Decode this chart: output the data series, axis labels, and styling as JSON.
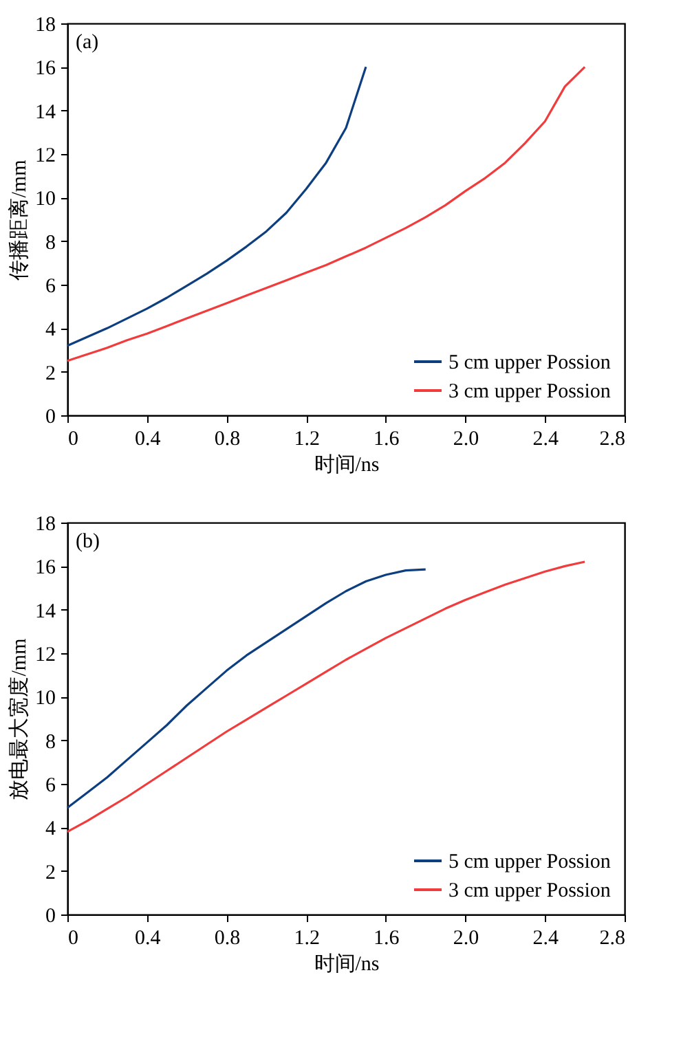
{
  "chart_data": [
    {
      "type": "line",
      "xlabel": "时间/ns",
      "ylabel": "传播距离/mm",
      "annotations": [
        "(a)"
      ],
      "legend": "bottom right",
      "grid": false,
      "line_style": "solid",
      "xlim": [
        0,
        2.8
      ],
      "xticks": [
        0,
        0.4,
        0.8,
        1.2,
        1.6,
        {
          "value": 2,
          "label": "2.0"
        },
        2.4,
        2.8
      ],
      "ylim": [
        0,
        18
      ],
      "yticks": [
        0,
        2,
        4,
        6,
        8,
        10,
        12,
        14,
        16,
        18
      ],
      "series": [
        {
          "name": "5 cm upper Possion",
          "color": "#0d3f80",
          "x": [
            0,
            0.1,
            0.2,
            0.3,
            0.4,
            0.5,
            0.6,
            0.7,
            0.8,
            0.9,
            1.0,
            1.1,
            1.2,
            1.3,
            1.4,
            1.5
          ],
          "values": [
            3.2,
            3.6,
            4.0,
            4.45,
            4.9,
            5.4,
            5.95,
            6.5,
            7.1,
            7.75,
            8.45,
            9.3,
            10.4,
            11.6,
            13.2,
            16.0
          ]
        },
        {
          "name": "3 cm upper Possion",
          "color": "#f03c3c",
          "x": [
            0,
            0.1,
            0.2,
            0.3,
            0.4,
            0.5,
            0.6,
            0.7,
            0.8,
            0.9,
            1.0,
            1.1,
            1.2,
            1.3,
            1.4,
            1.5,
            1.6,
            1.7,
            1.8,
            1.9,
            2.0,
            2.1,
            2.2,
            2.3,
            2.4,
            2.5,
            2.6
          ],
          "values": [
            2.5,
            2.8,
            3.1,
            3.45,
            3.75,
            4.1,
            4.45,
            4.8,
            5.15,
            5.5,
            5.85,
            6.2,
            6.55,
            6.9,
            7.3,
            7.7,
            8.15,
            8.6,
            9.1,
            9.65,
            10.3,
            10.9,
            11.6,
            12.5,
            13.5,
            15.1,
            16.0
          ]
        }
      ]
    },
    {
      "type": "line",
      "xlabel": "时间/ns",
      "ylabel": "放电最大宽度/mm",
      "annotations": [
        "(b)"
      ],
      "legend": "bottom right",
      "grid": false,
      "line_style": "solid",
      "xlim": [
        0,
        2.8
      ],
      "xticks": [
        0,
        0.4,
        0.8,
        1.2,
        1.6,
        {
          "value": 2,
          "label": "2.0"
        },
        2.4,
        2.8
      ],
      "ylim": [
        0,
        18
      ],
      "yticks": [
        0,
        2,
        4,
        6,
        8,
        10,
        12,
        14,
        16,
        18
      ],
      "series": [
        {
          "name": "5 cm upper Possion",
          "color": "#0d3f80",
          "x": [
            0,
            0.1,
            0.2,
            0.3,
            0.4,
            0.5,
            0.6,
            0.7,
            0.8,
            0.9,
            1.0,
            1.1,
            1.2,
            1.3,
            1.4,
            1.5,
            1.6,
            1.7,
            1.8
          ],
          "values": [
            4.9,
            5.6,
            6.3,
            7.1,
            7.9,
            8.7,
            9.6,
            10.4,
            11.2,
            11.9,
            12.5,
            13.1,
            13.7,
            14.3,
            14.85,
            15.3,
            15.6,
            15.8,
            15.85
          ]
        },
        {
          "name": "3 cm upper Possion",
          "color": "#f03c3c",
          "x": [
            0,
            0.1,
            0.2,
            0.3,
            0.4,
            0.5,
            0.6,
            0.7,
            0.8,
            0.9,
            1.0,
            1.1,
            1.2,
            1.3,
            1.4,
            1.5,
            1.6,
            1.7,
            1.8,
            1.9,
            2.0,
            2.1,
            2.2,
            2.3,
            2.4,
            2.5,
            2.6
          ],
          "values": [
            3.8,
            4.3,
            4.85,
            5.4,
            6.0,
            6.6,
            7.2,
            7.8,
            8.4,
            8.95,
            9.5,
            10.05,
            10.6,
            11.15,
            11.7,
            12.2,
            12.7,
            13.15,
            13.6,
            14.05,
            14.45,
            14.8,
            15.15,
            15.45,
            15.75,
            16.0,
            16.2
          ]
        }
      ]
    }
  ]
}
